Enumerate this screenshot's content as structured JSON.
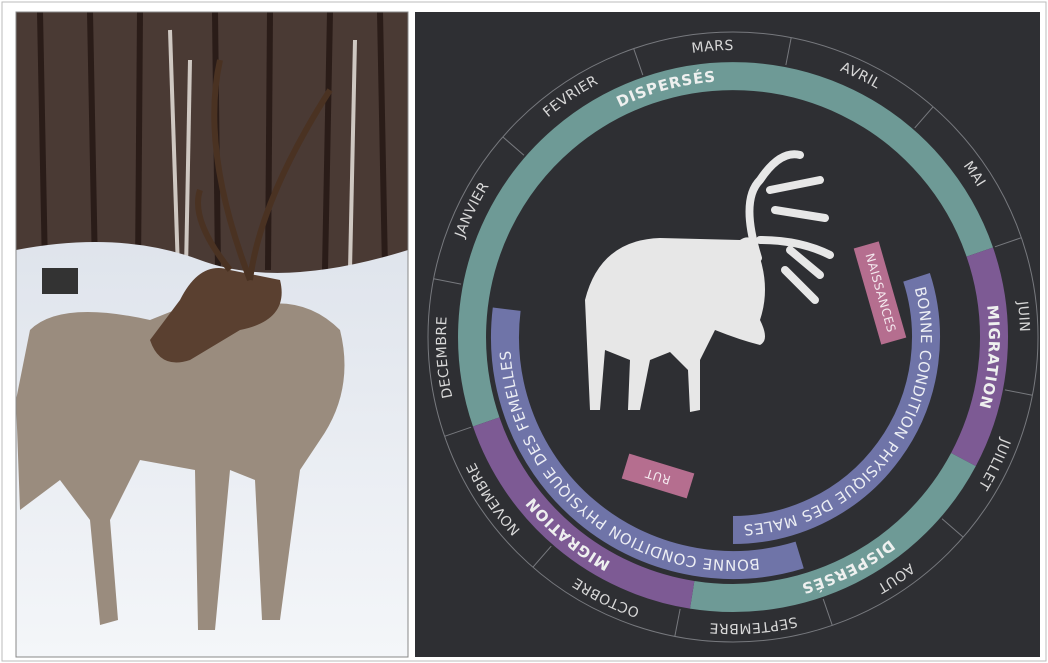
{
  "months": [
    "MARS",
    "AVRIL",
    "MAI",
    "JUIN",
    "JUILLET",
    "AOUT",
    "SEPTEMBRE",
    "OCTOBRE",
    "NOVEMBRE",
    "DECEMBRE",
    "JANVIER",
    "FEVRIER"
  ],
  "phases": {
    "dispersed_1": "DISPERSÉS",
    "migration_1": "MIGRATION",
    "dispersed_2": "DISPERSÉS",
    "migration_2": "MIGRATION"
  },
  "conditions": {
    "males": "BONNE CONDITION PHYSIQUE DES MALES",
    "females": "BONNE CONDITION PHYSIQUE DES FEMELLES"
  },
  "events": {
    "births": "NAISSANCES",
    "rut": "RUT"
  }
}
